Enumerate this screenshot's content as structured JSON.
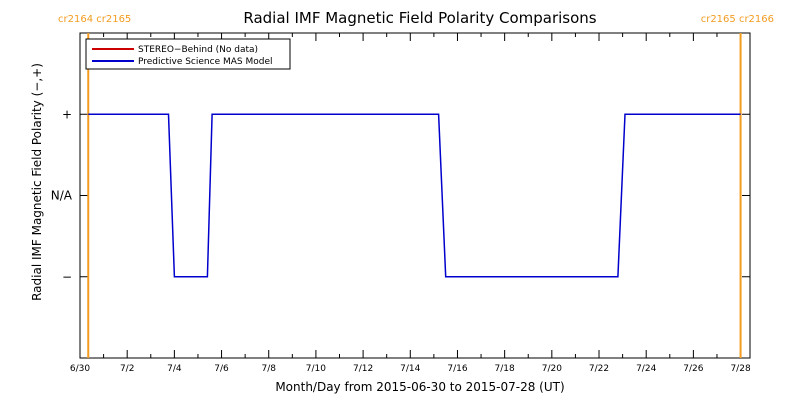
{
  "chart_data": {
    "type": "line",
    "title": "Radial IMF Magnetic Field Polarity Comparisons",
    "xlabel": "Month/Day from 2015-06-30 to 2015-07-28 (UT)",
    "ylabel": "Radial IMF Magnetic Field Polarity (−,+)",
    "x_tick_labels": [
      "6/30",
      "7/2",
      "7/4",
      "7/6",
      "7/8",
      "7/10",
      "7/12",
      "7/14",
      "7/16",
      "7/18",
      "7/20",
      "7/22",
      "7/24",
      "7/26",
      "7/28"
    ],
    "x_tick_values": [
      0,
      2,
      4,
      6,
      8,
      10,
      12,
      14,
      16,
      18,
      20,
      22,
      24,
      26,
      28
    ],
    "xlim": [
      0,
      28.4
    ],
    "y_tick_labels": [
      "−",
      "N/A",
      "+"
    ],
    "y_tick_values": [
      -1,
      0,
      1
    ],
    "ylim": [
      -2,
      2
    ],
    "legend": {
      "placement": "top-left",
      "entries": [
        {
          "label": "STEREO−Behind (No data)",
          "color": "#cc0000"
        },
        {
          "label": "Predictive Science MAS Model",
          "color": "#0000cc"
        }
      ]
    },
    "series": [
      {
        "name": "Predictive Science MAS Model",
        "color": "#0000cc",
        "x": [
          0.35,
          3.75,
          4.0,
          5.4,
          5.6,
          15.2,
          15.5,
          22.8,
          23.1,
          28.0
        ],
        "y": [
          1,
          1,
          -1,
          -1,
          1,
          1,
          -1,
          -1,
          1,
          1
        ]
      }
    ],
    "carrington_markers": [
      {
        "x": 0.35,
        "label": "cr2164 cr2165",
        "color": "#f39c1f"
      },
      {
        "x": 28.0,
        "label": "cr2165 cr2166",
        "color": "#f39c1f"
      }
    ]
  }
}
